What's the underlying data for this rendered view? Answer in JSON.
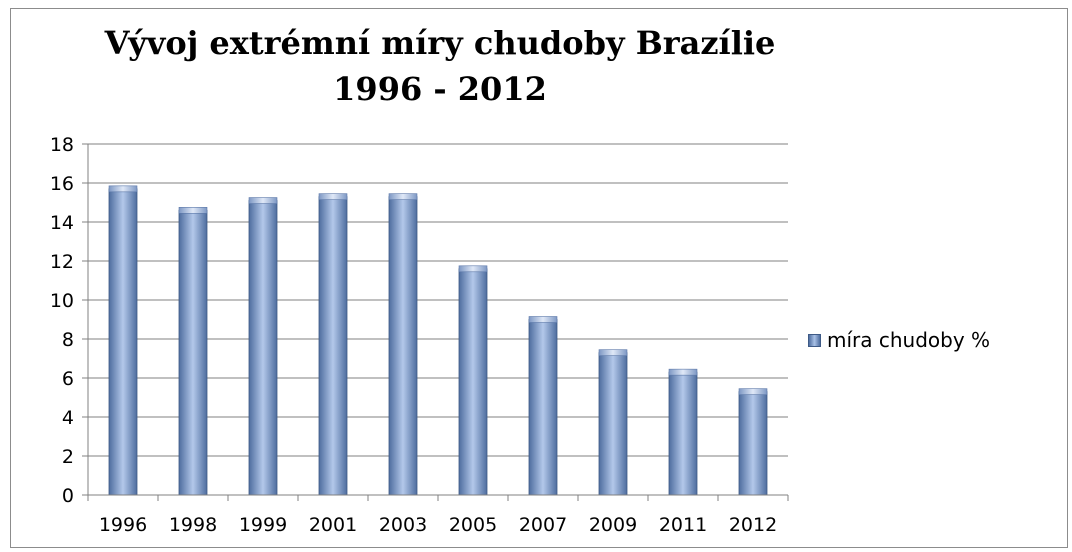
{
  "chart_data": {
    "type": "bar",
    "title": [
      "Vývoj extrémní míry chudoby Brazílie",
      "1996 - 2012"
    ],
    "categories": [
      "1996",
      "1998",
      "1999",
      "2001",
      "2003",
      "2005",
      "2007",
      "2009",
      "2011",
      "2012"
    ],
    "series": [
      {
        "name": "míra chudoby %",
        "values": [
          15.7,
          14.6,
          15.1,
          15.3,
          15.3,
          11.6,
          9.0,
          7.3,
          6.3,
          5.3
        ]
      }
    ],
    "yticks": [
      "0",
      "2",
      "4",
      "6",
      "8",
      "10",
      "12",
      "14",
      "16",
      "18"
    ],
    "ylim": [
      0,
      18
    ],
    "grid": true,
    "legend": "right",
    "colors": {
      "bar_dark": "#4e6d9f",
      "bar_light": "#b3c8ea",
      "gridline": "#808080"
    }
  }
}
